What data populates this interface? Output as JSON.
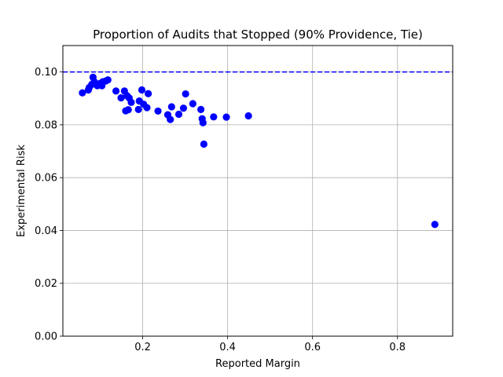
{
  "chart_data": {
    "type": "scatter",
    "title": "Proportion of Audits that Stopped (90% Providence, Tie)",
    "xlabel": "Reported Margin",
    "ylabel": "Experimental Risk",
    "xlim": [
      0.012,
      0.93
    ],
    "ylim": [
      0.0,
      0.11
    ],
    "xticks": [
      0.2,
      0.4,
      0.6,
      0.8
    ],
    "xtick_labels": [
      "0.2",
      "0.4",
      "0.6",
      "0.8"
    ],
    "yticks": [
      0.0,
      0.02,
      0.04,
      0.06,
      0.08,
      0.1
    ],
    "ytick_labels": [
      "0.00",
      "0.02",
      "0.04",
      "0.06",
      "0.08",
      "0.10"
    ],
    "grid": true,
    "reference_line": {
      "y": 0.1,
      "style": "dashed",
      "color": "#0000ff"
    },
    "series": [
      {
        "color": "#0000ff",
        "marker": "circle",
        "points": [
          [
            0.058,
            0.0921
          ],
          [
            0.072,
            0.0932
          ],
          [
            0.074,
            0.0941
          ],
          [
            0.08,
            0.0953
          ],
          [
            0.083,
            0.098
          ],
          [
            0.086,
            0.0963
          ],
          [
            0.093,
            0.0948
          ],
          [
            0.1,
            0.0957
          ],
          [
            0.104,
            0.0948
          ],
          [
            0.106,
            0.0963
          ],
          [
            0.113,
            0.0966
          ],
          [
            0.118,
            0.097
          ],
          [
            0.137,
            0.0928
          ],
          [
            0.149,
            0.0902
          ],
          [
            0.157,
            0.0928
          ],
          [
            0.16,
            0.0853
          ],
          [
            0.163,
            0.091
          ],
          [
            0.166,
            0.0857
          ],
          [
            0.168,
            0.0902
          ],
          [
            0.173,
            0.0885
          ],
          [
            0.19,
            0.0858
          ],
          [
            0.192,
            0.089
          ],
          [
            0.198,
            0.0932
          ],
          [
            0.202,
            0.0878
          ],
          [
            0.21,
            0.0865
          ],
          [
            0.213,
            0.0918
          ],
          [
            0.236,
            0.0852
          ],
          [
            0.259,
            0.0838
          ],
          [
            0.265,
            0.082
          ],
          [
            0.268,
            0.0868
          ],
          [
            0.285,
            0.084
          ],
          [
            0.296,
            0.0863
          ],
          [
            0.301,
            0.0917
          ],
          [
            0.318,
            0.088
          ],
          [
            0.337,
            0.0858
          ],
          [
            0.34,
            0.0823
          ],
          [
            0.342,
            0.0808
          ],
          [
            0.344,
            0.0727
          ],
          [
            0.367,
            0.083
          ],
          [
            0.397,
            0.0829
          ],
          [
            0.449,
            0.0834
          ],
          [
            0.888,
            0.0423
          ]
        ]
      }
    ]
  }
}
